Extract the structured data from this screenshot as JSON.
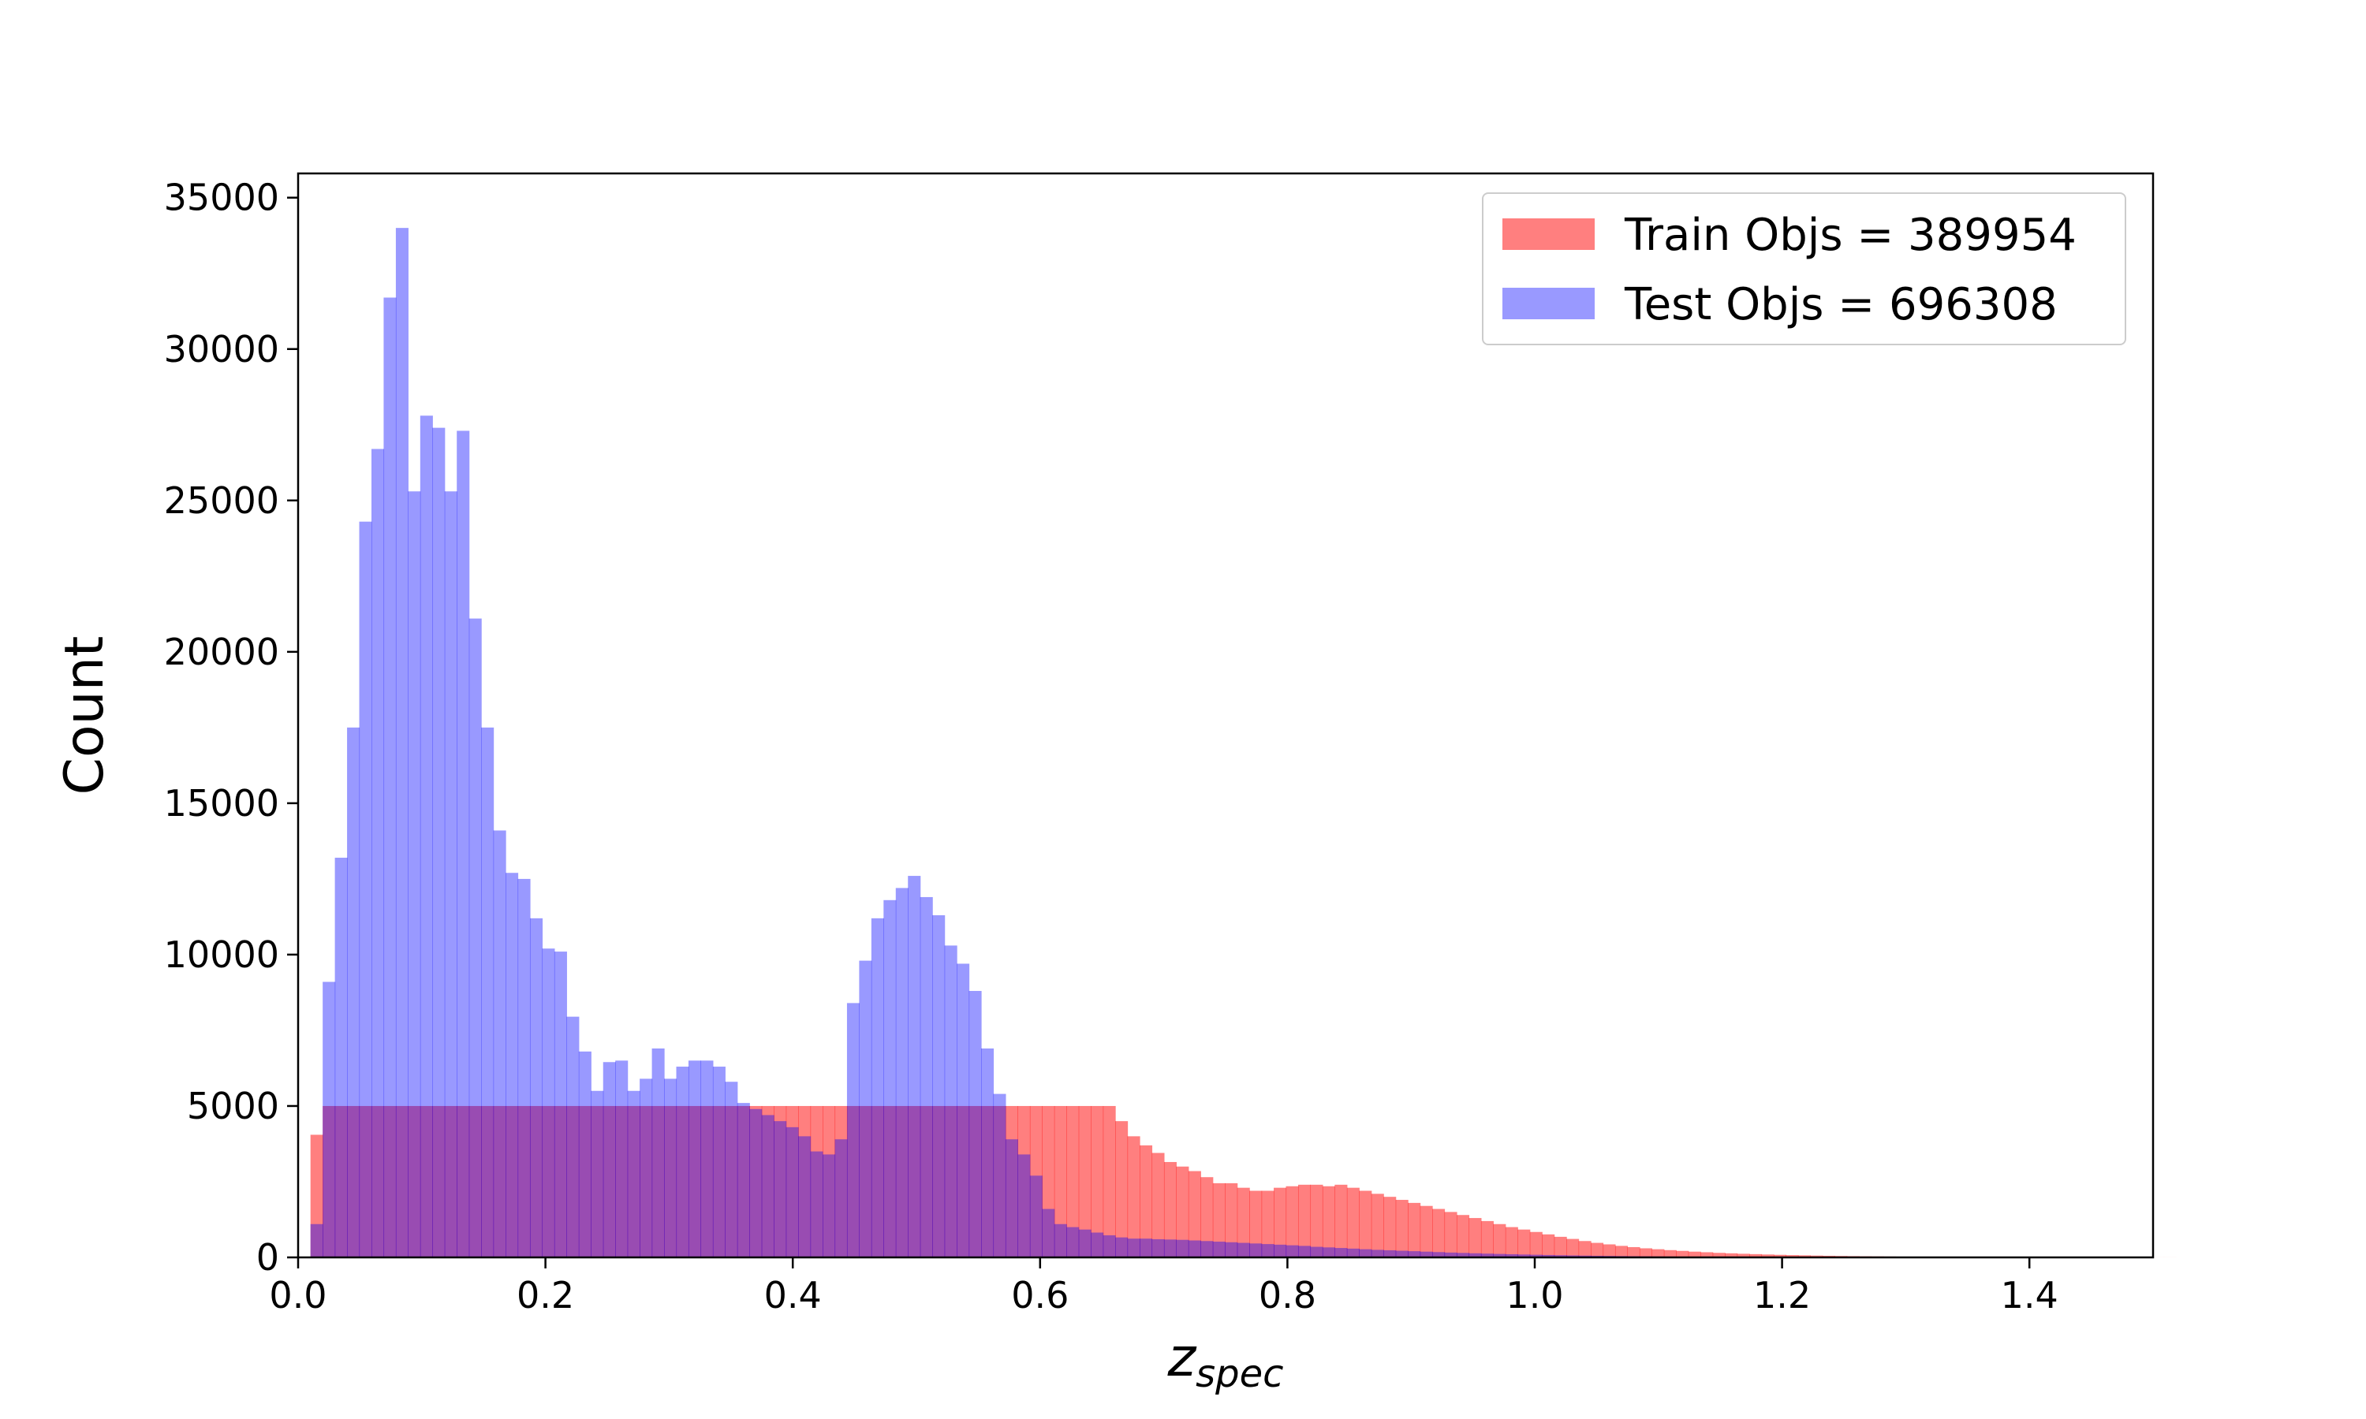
{
  "chart_data": {
    "type": "histogram",
    "title": "",
    "xlabel": "z",
    "xlabel_subscript": "spec",
    "ylabel": "Count",
    "xlim": [
      0.0,
      1.5
    ],
    "ylim": [
      0,
      35800
    ],
    "xticks": [
      "0.0",
      "0.2",
      "0.4",
      "0.6",
      "0.8",
      "1.0",
      "1.2",
      "1.4"
    ],
    "yticks": [
      "0",
      "5000",
      "10000",
      "15000",
      "20000",
      "25000",
      "30000",
      "35000"
    ],
    "grid": false,
    "legend_position": "top-right",
    "bin_start": 0.01,
    "bin_width": 0.00986,
    "series": [
      {
        "name": "Train Objs = 389954",
        "color": "#ff0000",
        "opacity": 0.5,
        "counts": [
          4050,
          5000,
          5000,
          5000,
          5000,
          5000,
          5000,
          5000,
          5000,
          5000,
          5000,
          5000,
          5000,
          5000,
          5000,
          5000,
          5000,
          5000,
          5000,
          5000,
          5000,
          5000,
          5000,
          5000,
          5000,
          5000,
          5000,
          5000,
          5000,
          5000,
          5000,
          5000,
          5000,
          5000,
          5000,
          5000,
          5000,
          5000,
          5000,
          5000,
          5000,
          5000,
          5000,
          5000,
          5000,
          5000,
          5000,
          5000,
          5000,
          5000,
          5000,
          5000,
          5000,
          5000,
          5000,
          5000,
          5000,
          5000,
          5000,
          5000,
          5000,
          5000,
          5000,
          5000,
          5000,
          5000,
          4500,
          4000,
          3700,
          3450,
          3150,
          3000,
          2850,
          2650,
          2450,
          2450,
          2300,
          2200,
          2200,
          2300,
          2350,
          2400,
          2400,
          2350,
          2400,
          2300,
          2200,
          2100,
          2000,
          1900,
          1800,
          1700,
          1600,
          1500,
          1400,
          1300,
          1200,
          1100,
          1000,
          920,
          840,
          760,
          680,
          610,
          540,
          480,
          430,
          380,
          340,
          300,
          270,
          240,
          215,
          190,
          170,
          150,
          135,
          120,
          108,
          96,
          85,
          76,
          68,
          60,
          53,
          47,
          42,
          37,
          33,
          29,
          26,
          23,
          20,
          18,
          16,
          14,
          12,
          11,
          10,
          9,
          8,
          7,
          6,
          5,
          4,
          3,
          3,
          2,
          2,
          1,
          1,
          1,
          1
        ]
      },
      {
        "name": "Test Objs = 696308",
        "color": "#0000ff",
        "opacity": 0.4,
        "counts": [
          1100,
          9100,
          13200,
          17500,
          24300,
          26700,
          31700,
          34000,
          25300,
          27800,
          27400,
          25300,
          27300,
          21100,
          17500,
          14100,
          12700,
          12500,
          11200,
          10200,
          10100,
          7950,
          6800,
          5500,
          6450,
          6500,
          5500,
          5900,
          6900,
          5900,
          6300,
          6500,
          6500,
          6300,
          5800,
          5100,
          4900,
          4700,
          4500,
          4300,
          4000,
          3500,
          3400,
          3900,
          8400,
          9800,
          11200,
          11800,
          12200,
          12600,
          11900,
          11300,
          10300,
          9700,
          8800,
          6900,
          5400,
          3900,
          3400,
          2700,
          1600,
          1100,
          1000,
          920,
          820,
          730,
          660,
          620,
          620,
          600,
          590,
          580,
          560,
          540,
          520,
          500,
          480,
          460,
          440,
          420,
          400,
          380,
          350,
          330,
          310,
          290,
          270,
          250,
          235,
          220,
          205,
          190,
          175,
          160,
          148,
          136,
          125,
          115,
          105,
          96,
          88,
          80,
          72,
          65,
          59,
          53,
          48,
          43,
          39,
          35,
          31,
          28,
          25,
          22,
          20,
          18,
          16,
          14,
          12,
          11,
          10,
          9,
          8,
          7,
          6,
          5,
          4,
          4,
          3,
          3,
          2,
          2,
          2,
          1,
          1,
          1,
          1,
          1,
          1,
          1,
          1,
          1,
          1,
          1,
          1,
          1,
          1,
          1
        ]
      }
    ]
  }
}
